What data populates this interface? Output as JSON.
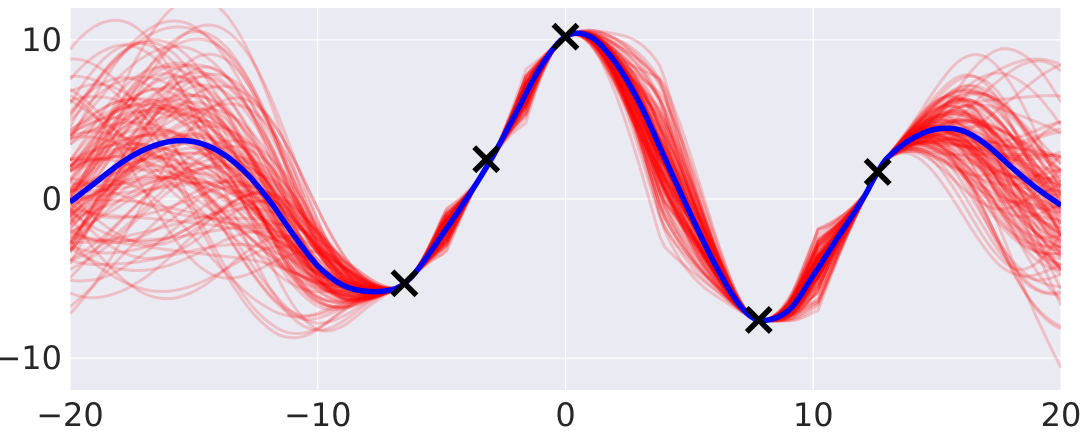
{
  "chart_data": {
    "type": "line",
    "title": "",
    "xlabel": "",
    "ylabel": "",
    "xlim": [
      -20,
      20
    ],
    "ylim": [
      -12.0,
      12.0
    ],
    "xticks": [
      -20,
      -10,
      0,
      10,
      20
    ],
    "xtick_labels": [
      "−20",
      "−10",
      "0",
      "10",
      "20"
    ],
    "yticks": [
      -10,
      0,
      10
    ],
    "ytick_labels": [
      "−10",
      "0",
      "10"
    ],
    "grid": true,
    "legend": "none",
    "colors": {
      "background": "#eaeaf2",
      "grid": "#ffffff",
      "mean_line": "#0000ff",
      "samples": "#ff0000",
      "observations": "#000000"
    },
    "series": [
      {
        "role": "posterior-mean",
        "x": [
          -20,
          -19,
          -18,
          -17,
          -16,
          -15,
          -14,
          -13,
          -12,
          -11,
          -10,
          -9,
          -8,
          -7,
          -6.5,
          -6,
          -5,
          -4,
          -3,
          -2,
          -1,
          0,
          1,
          2,
          3,
          4,
          5,
          6,
          7,
          7.8,
          9,
          10,
          11,
          12,
          12.6,
          13,
          14,
          15,
          16,
          17,
          18,
          19,
          20
        ],
        "y": [
          -0.2,
          1.0,
          2.2,
          3.1,
          3.6,
          3.6,
          3.0,
          1.8,
          0.0,
          -2.2,
          -4.2,
          -5.4,
          -5.8,
          -5.7,
          -5.3,
          -4.5,
          -2.3,
          0.0,
          2.5,
          5.4,
          8.3,
          10.2,
          10.2,
          8.6,
          6.0,
          2.6,
          -0.8,
          -4.0,
          -6.6,
          -7.6,
          -7.0,
          -4.8,
          -2.4,
          0.0,
          1.7,
          2.6,
          3.8,
          4.4,
          4.3,
          3.4,
          2.0,
          0.7,
          -0.4
        ]
      }
    ],
    "observations": {
      "x": [
        -6.5,
        -3.2,
        0.0,
        7.8,
        12.6
      ],
      "y": [
        -5.3,
        2.5,
        10.2,
        -7.6,
        1.7
      ],
      "marker": "x"
    },
    "samples": {
      "count": 120
    }
  }
}
